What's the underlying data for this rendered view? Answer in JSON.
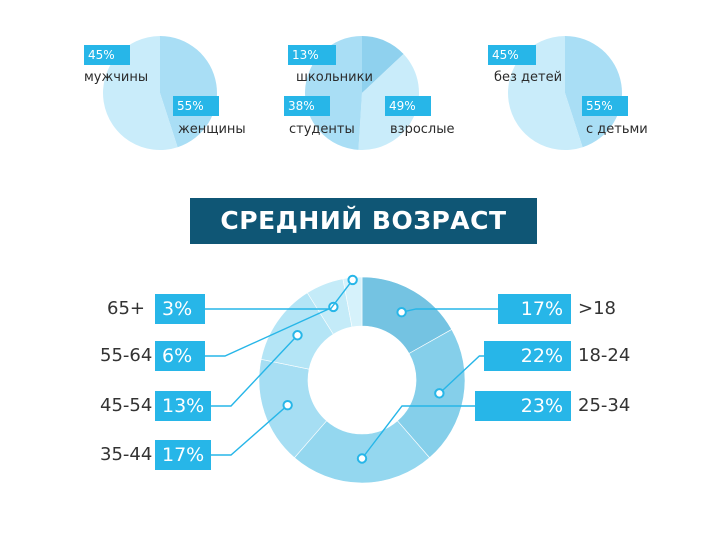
{
  "palette": {
    "accent": "#27b6e8",
    "banner": "#0f5675",
    "pie_light": "#c9ecfa",
    "pie_mid": "#a9def5",
    "pie_dark": "#8fd1ee"
  },
  "banner": {
    "title": "СРЕДНИЙ ВОЗРАСТ"
  },
  "chart_data": [
    {
      "type": "pie",
      "categories": [
        "мужчины",
        "женщины"
      ],
      "values": [
        45,
        55
      ],
      "labels": [
        "45%",
        "55%"
      ]
    },
    {
      "type": "pie",
      "categories": [
        "школьники",
        "студенты",
        "взрослые"
      ],
      "values": [
        13,
        38,
        49
      ],
      "labels": [
        "13%",
        "38%",
        "49%"
      ]
    },
    {
      "type": "pie",
      "categories": [
        "без детей",
        "с детьми"
      ],
      "values": [
        45,
        55
      ],
      "labels": [
        "45%",
        "55%"
      ]
    },
    {
      "type": "pie",
      "subtype": "donut",
      "title": "СРЕДНИЙ ВОЗРАСТ",
      "categories": [
        ">18",
        "18-24",
        "25-34",
        "35-44",
        "45-54",
        "55-64",
        "65+"
      ],
      "values": [
        17,
        22,
        23,
        17,
        13,
        6,
        3
      ],
      "labels": [
        "17%",
        "22%",
        "23%",
        "17%",
        "13%",
        "6%",
        "3%"
      ]
    }
  ]
}
